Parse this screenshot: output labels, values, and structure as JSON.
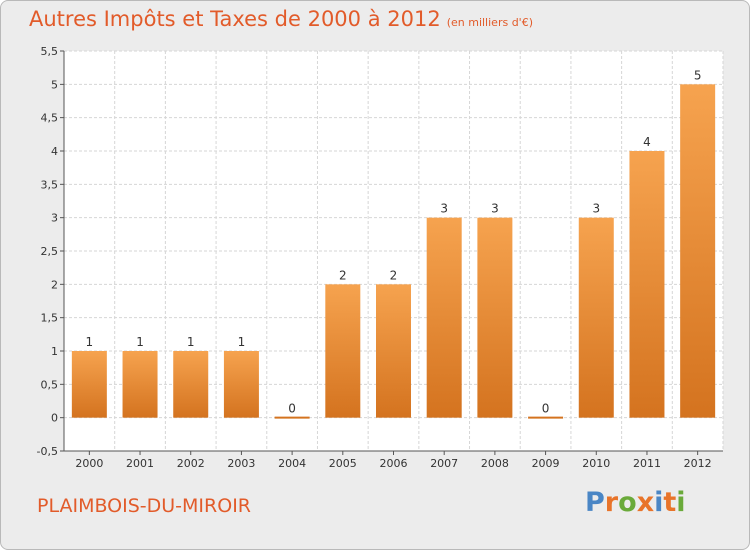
{
  "header": {
    "title": "Autres Impôts et Taxes de 2000 à 2012",
    "unit": "(en milliers d'€)"
  },
  "footer": {
    "place": "PLAIMBOIS-DU-MIROIR",
    "logo": [
      "P",
      "r",
      "o",
      "x",
      "i",
      "t",
      "i"
    ],
    "logo_colors": [
      "#4a86c5",
      "#e8742a",
      "#6aaa3a",
      "#e8742a",
      "#4a86c5",
      "#e8742a",
      "#6aaa3a"
    ]
  },
  "chart_data": {
    "type": "bar",
    "title": "Autres Impôts et Taxes de 2000 à 2012",
    "categories": [
      "2000",
      "2001",
      "2002",
      "2003",
      "2004",
      "2005",
      "2006",
      "2007",
      "2008",
      "2009",
      "2010",
      "2011",
      "2012"
    ],
    "values": [
      1,
      1,
      1,
      1,
      0,
      2,
      2,
      3,
      3,
      0,
      3,
      4,
      5
    ],
    "labels": [
      "1",
      "1",
      "1",
      "1",
      "0",
      "2",
      "2",
      "3",
      "3",
      "0",
      "3",
      "4",
      "5"
    ],
    "ylim": [
      -0.5,
      5.5
    ],
    "yticks": [
      "-0,5",
      "0",
      "0,5",
      "1",
      "1,5",
      "2",
      "2,5",
      "3",
      "3,5",
      "4",
      "4,5",
      "5",
      "5,5"
    ],
    "grid": true,
    "colors": {
      "bar_light": "#f6a34f",
      "bar_dark": "#d4731f",
      "grid": "#d6d6d6"
    }
  }
}
